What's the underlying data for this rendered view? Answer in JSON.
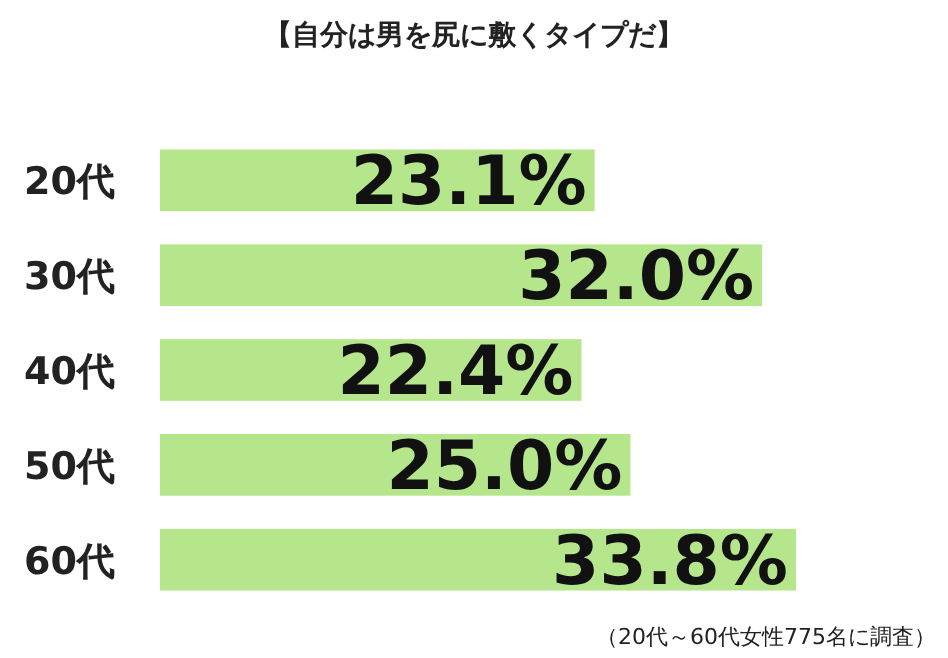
{
  "chart_data": {
    "type": "bar",
    "orientation": "horizontal",
    "title": "【自分は男を尻に敷くタイプだ】",
    "categories": [
      "20代",
      "30代",
      "40代",
      "50代",
      "60代"
    ],
    "values": [
      23.1,
      32.0,
      22.4,
      25.0,
      33.8
    ],
    "value_labels": [
      "23.1%",
      "32.0%",
      "22.4%",
      "25.0%",
      "33.8%"
    ],
    "color": "#b5e68c",
    "annotations": [
      "（20代～60代女性775名に調査）"
    ]
  }
}
